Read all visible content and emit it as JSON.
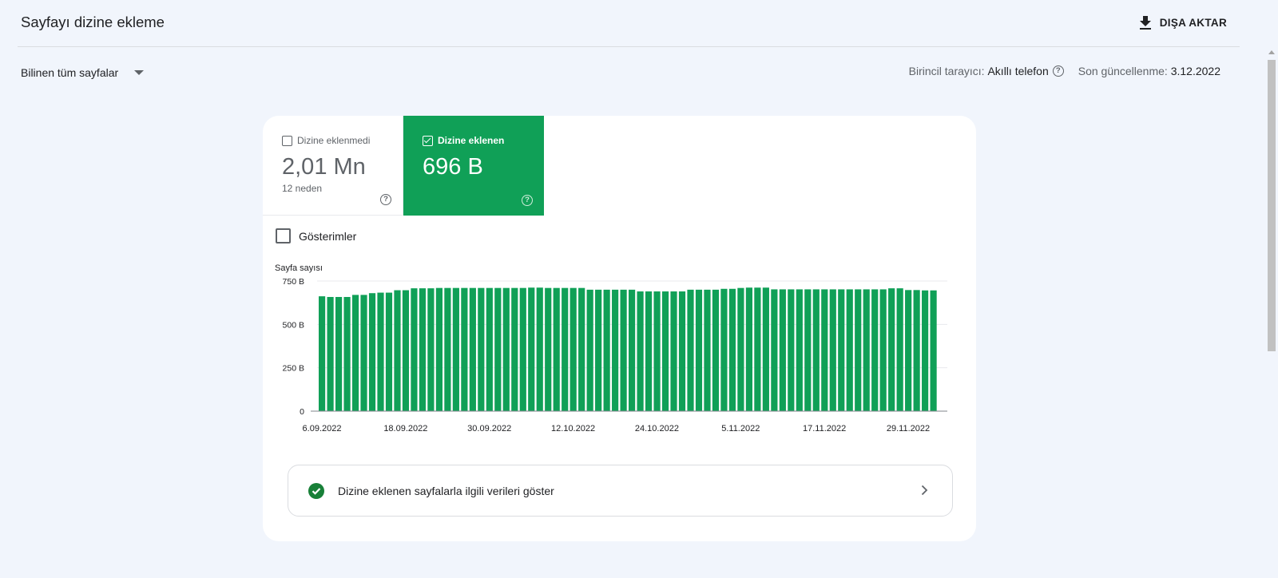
{
  "header": {
    "title": "Sayfayı dizine ekleme",
    "export_label": "DIŞA AKTAR"
  },
  "filter": {
    "selected": "Bilinen tüm sayfalar"
  },
  "meta": {
    "crawler_label": "Birincil tarayıcı:",
    "crawler_value": "Akıllı telefon",
    "updated_label": "Son güncellenme:",
    "updated_value": "3.12.2022"
  },
  "tiles": {
    "not_indexed": {
      "label": "Dizine eklenmedi",
      "value": "2,01 Mn",
      "sub": "12 neden",
      "checked": false
    },
    "indexed": {
      "label": "Dizine eklenen",
      "value": "696 B",
      "checked": true
    }
  },
  "impressions": {
    "label": "Gösterimler",
    "checked": false
  },
  "detail_link": {
    "label": "Dizine eklenen sayfalarla ilgili verileri göster"
  },
  "colors": {
    "indexed_green": "#10a057",
    "check_green": "#188038"
  },
  "chart_data": {
    "type": "bar",
    "ylabel": "Sayfa sayısı",
    "ylim": [
      0,
      750
    ],
    "y_ticks": [
      {
        "value": 0,
        "label": "0"
      },
      {
        "value": 250,
        "label": "250 B"
      },
      {
        "value": 500,
        "label": "500 B"
      },
      {
        "value": 750,
        "label": "750 B"
      }
    ],
    "x_ticks": [
      "6.09.2022",
      "18.09.2022",
      "30.09.2022",
      "12.10.2022",
      "24.10.2022",
      "5.11.2022",
      "17.11.2022",
      "29.11.2022"
    ],
    "x_start": "6.09.2022",
    "x_end": "3.12.2022",
    "series": [
      {
        "color": "#10a057",
        "values": [
          662,
          658,
          658,
          658,
          670,
          670,
          680,
          683,
          683,
          697,
          697,
          708,
          708,
          708,
          710,
          710,
          710,
          710,
          710,
          710,
          710,
          710,
          710,
          710,
          710,
          712,
          712,
          710,
          710,
          710,
          710,
          710,
          700,
          700,
          700,
          700,
          700,
          700,
          690,
          690,
          690,
          690,
          690,
          690,
          700,
          700,
          700,
          700,
          705,
          705,
          710,
          712,
          712,
          712,
          702,
          702,
          702,
          702,
          702,
          702,
          702,
          702,
          702,
          702,
          702,
          702,
          702,
          702,
          708,
          708,
          698,
          698,
          696,
          696
        ]
      }
    ]
  }
}
